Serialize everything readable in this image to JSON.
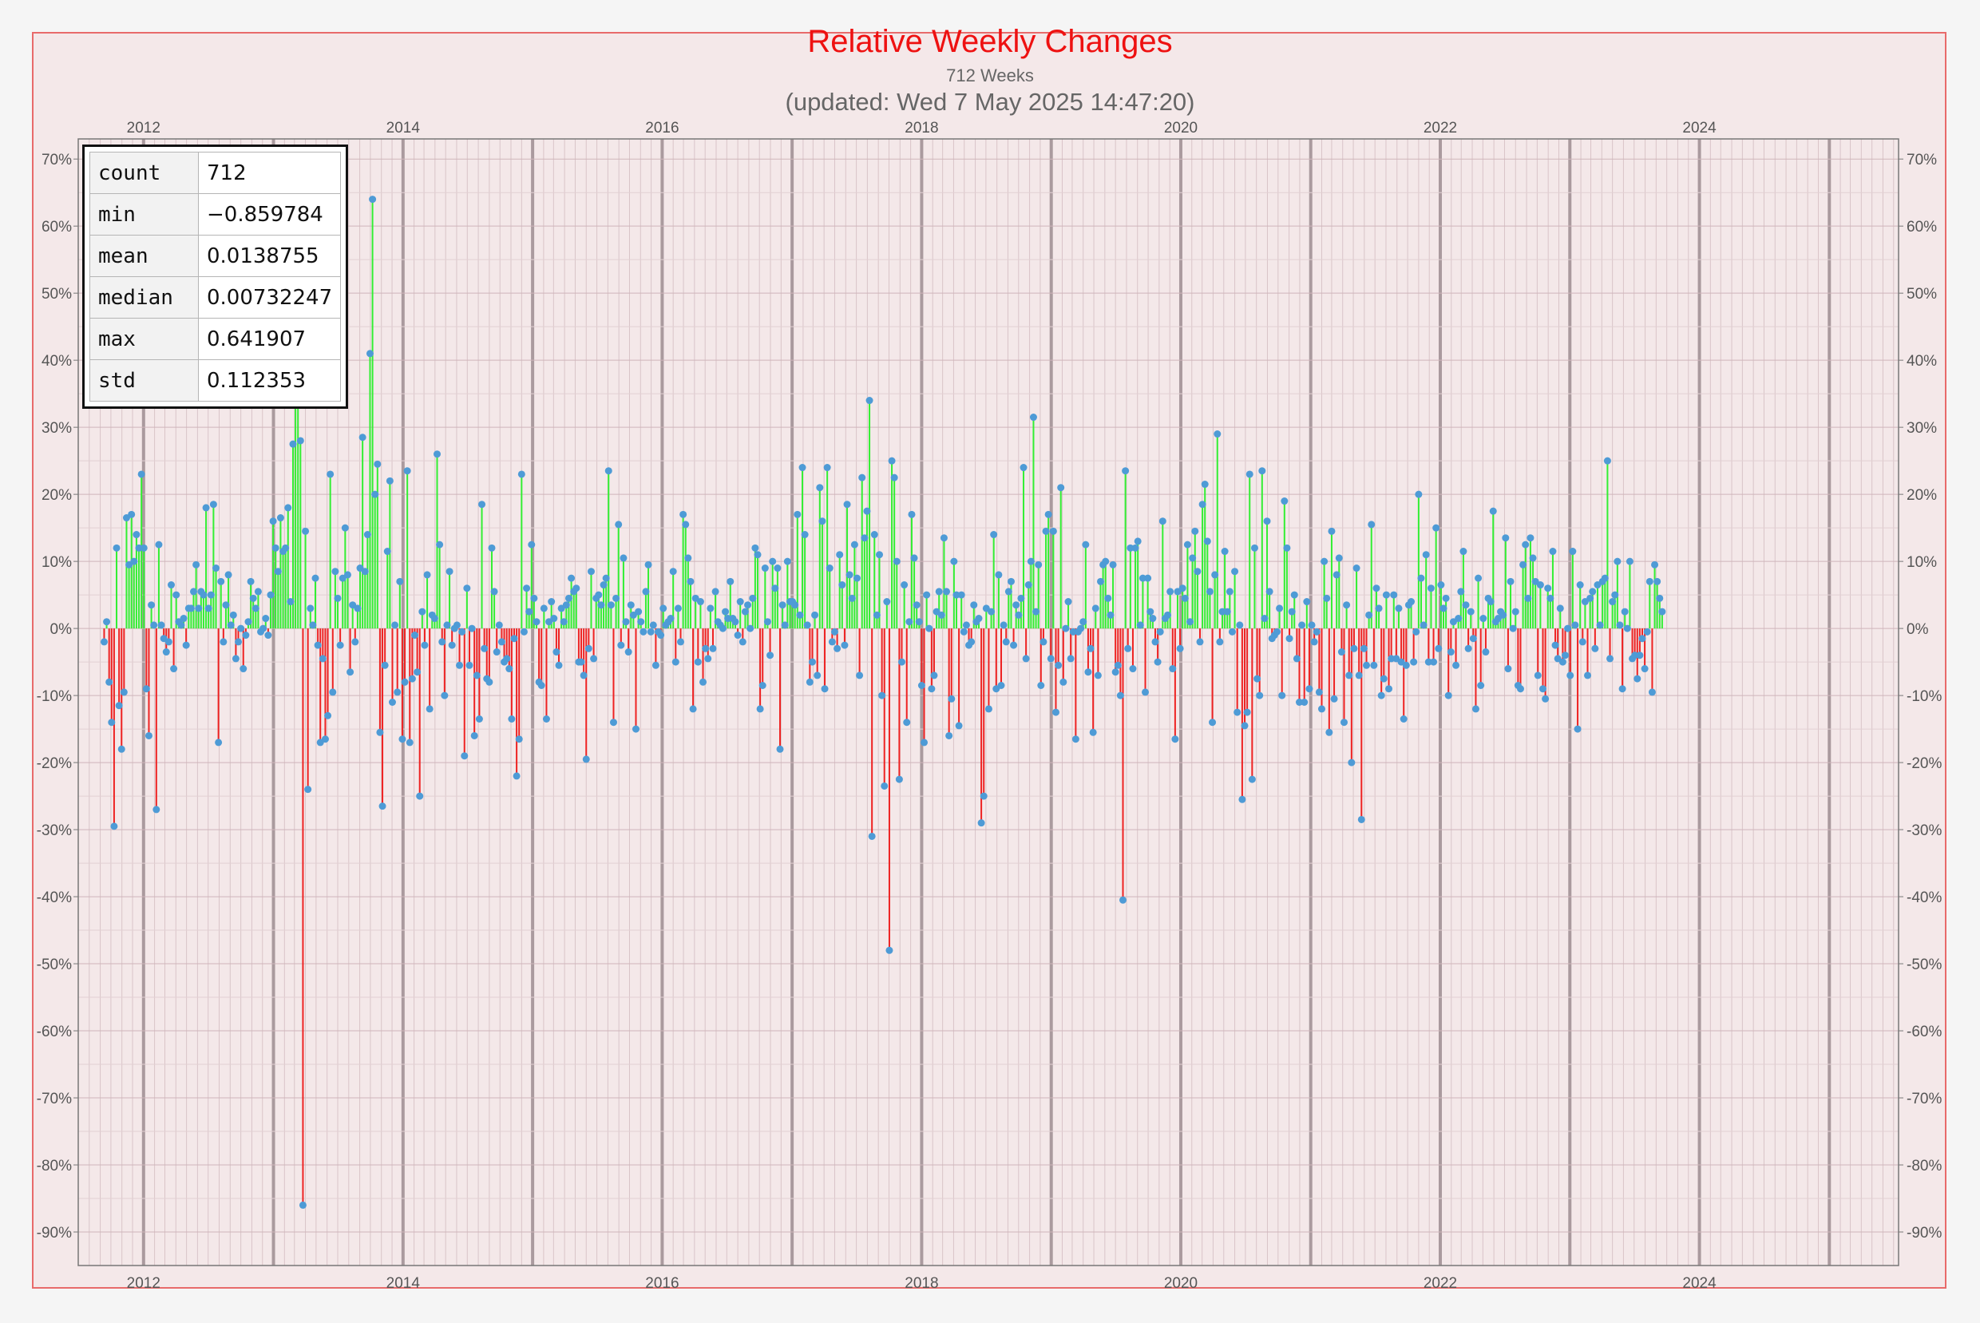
{
  "chart_data": {
    "type": "bar",
    "title": "Relative Weekly Changes",
    "subtitle": "712 Weeks",
    "updated": "(updated: Wed 7 May 2025 14:47:20)",
    "x_axis": {
      "type": "date",
      "range": [
        "2011-07-01",
        "2025-07-15"
      ],
      "tick_labels": [
        "2012",
        "2014",
        "2016",
        "2018",
        "2020",
        "2022",
        "2024"
      ]
    },
    "y_axis": {
      "range": [
        -0.95,
        0.73
      ],
      "format": "percent",
      "ticks": [
        0.7,
        0.6,
        0.5,
        0.4,
        0.3,
        0.2,
        0.1,
        0.0,
        -0.1,
        -0.2,
        -0.3,
        -0.4,
        -0.5,
        -0.6,
        -0.7,
        -0.8,
        -0.9
      ],
      "tick_labels": [
        "70%",
        "60%",
        "50%",
        "40%",
        "30%",
        "20%",
        "10%",
        "0%",
        "-10%",
        "-20%",
        "-30%",
        "-40%",
        "-50%",
        "-60%",
        "-70%",
        "-80%",
        "-90%"
      ]
    },
    "grid": true,
    "colors": {
      "positive": "#33ee33",
      "negative": "#ee2222",
      "marker": "#4e9bd6"
    },
    "stats": [
      {
        "label": "count",
        "value": "712"
      },
      {
        "label": "min",
        "value": "−0.859784"
      },
      {
        "label": "mean",
        "value": "0.0138755"
      },
      {
        "label": "median",
        "value": "0.00732247"
      },
      {
        "label": "max",
        "value": "0.641907"
      },
      {
        "label": "std",
        "value": "0.112353"
      }
    ],
    "series": [
      {
        "start_date": "2011-09-12",
        "period": "week",
        "values": [
          -0.02,
          0.01,
          -0.08,
          -0.14,
          -0.295,
          0.12,
          -0.115,
          -0.18,
          -0.095,
          0.165,
          0.095,
          0.17,
          0.1,
          0.14,
          0.12,
          0.23,
          0.12,
          -0.09,
          -0.16,
          0.035,
          0.005,
          -0.27,
          0.125,
          0.005,
          -0.015,
          -0.035,
          -0.02,
          0.065,
          -0.06,
          0.05,
          0.01,
          0.005,
          0.015,
          -0.025,
          0.03,
          0.03,
          0.055,
          0.095,
          0.03,
          0.055,
          0.05,
          0.18,
          0.03,
          0.05,
          0.185,
          0.09,
          -0.17,
          0.07,
          -0.02,
          0.035,
          0.08,
          0.005,
          0.02,
          -0.045,
          -0.02,
          0.0,
          -0.06,
          -0.01,
          0.01,
          0.07,
          0.045,
          0.03,
          0.055,
          -0.005,
          0.0,
          0.015,
          -0.01,
          0.05,
          0.16,
          0.12,
          0.085,
          0.165,
          0.115,
          0.12,
          0.18,
          0.04,
          0.275,
          0.38,
          0.4,
          0.28,
          -0.86,
          0.145,
          -0.24,
          0.03,
          0.005,
          0.075,
          -0.025,
          -0.17,
          -0.045,
          -0.165,
          -0.13,
          0.23,
          -0.095,
          0.085,
          0.045,
          -0.025,
          0.075,
          0.15,
          0.08,
          -0.065,
          0.035,
          -0.02,
          0.03,
          0.09,
          0.285,
          0.085,
          0.14,
          0.41,
          0.64,
          0.2,
          0.245,
          -0.155,
          -0.265,
          -0.055,
          0.115,
          0.22,
          -0.11,
          0.005,
          -0.095,
          0.07,
          -0.165,
          -0.08,
          0.235,
          -0.17,
          -0.075,
          -0.01,
          -0.065,
          -0.25,
          0.025,
          -0.025,
          0.08,
          -0.12,
          0.02,
          0.015,
          0.26,
          0.125,
          -0.02,
          -0.1,
          0.005,
          0.085,
          -0.025,
          0.0,
          0.005,
          -0.055,
          -0.005,
          -0.19,
          0.06,
          -0.055,
          0.0,
          -0.16,
          -0.07,
          -0.135,
          0.185,
          -0.03,
          -0.075,
          -0.08,
          0.12,
          0.055,
          -0.035,
          0.005,
          -0.02,
          -0.05,
          -0.045,
          -0.06,
          -0.135,
          -0.015,
          -0.22,
          -0.165,
          0.23,
          -0.005,
          0.06,
          0.025,
          0.125,
          0.045,
          0.01,
          -0.08,
          -0.085,
          0.03,
          -0.135,
          0.01,
          0.04,
          0.015,
          -0.035,
          -0.055,
          0.03,
          0.01,
          0.035,
          0.045,
          0.075,
          0.055,
          0.06,
          -0.05,
          -0.05,
          -0.07,
          -0.195,
          -0.03,
          0.085,
          -0.045,
          0.045,
          0.05,
          0.035,
          0.065,
          0.075,
          0.235,
          0.035,
          -0.14,
          0.045,
          0.155,
          -0.025,
          0.105,
          0.01,
          -0.035,
          0.035,
          0.02,
          -0.15,
          0.025,
          0.01,
          -0.005,
          0.055,
          0.095,
          -0.005,
          0.005,
          -0.055,
          -0.005,
          -0.01,
          0.03,
          0.005,
          0.01,
          0.015,
          0.085,
          -0.05,
          0.03,
          -0.02,
          0.17,
          0.155,
          0.105,
          0.07,
          -0.12,
          0.045,
          -0.05,
          0.04,
          -0.08,
          -0.03,
          -0.045,
          0.03,
          -0.03,
          0.055,
          0.01,
          0.005,
          0.0,
          0.025,
          0.015,
          0.07,
          0.015,
          0.01,
          -0.01,
          0.04,
          -0.02,
          0.025,
          0.035,
          0.0,
          0.045,
          0.12,
          0.11,
          -0.12,
          -0.085,
          0.09,
          0.01,
          -0.04,
          0.1,
          0.06,
          0.09,
          -0.18,
          0.035,
          0.005,
          0.1,
          0.04,
          0.04,
          0.035,
          0.17,
          0.02,
          0.24,
          0.14,
          0.005,
          -0.08,
          -0.05,
          0.02,
          -0.07,
          0.21,
          0.16,
          -0.09,
          0.24,
          0.09,
          -0.02,
          -0.005,
          -0.03,
          0.11,
          0.065,
          -0.025,
          0.185,
          0.08,
          0.045,
          0.125,
          0.075,
          -0.07,
          0.225,
          0.135,
          0.175,
          0.34,
          -0.31,
          0.14,
          0.02,
          0.11,
          -0.1,
          -0.235,
          0.04,
          -0.48,
          0.25,
          0.225,
          0.1,
          -0.225,
          -0.05,
          0.065,
          -0.14,
          0.01,
          0.17,
          0.105,
          0.035,
          0.01,
          -0.085,
          -0.17,
          0.05,
          0.0,
          -0.09,
          -0.07,
          0.025,
          0.055,
          0.02,
          0.135,
          0.055,
          -0.16,
          -0.105,
          0.1,
          0.05,
          -0.145,
          0.05,
          -0.005,
          0.005,
          -0.025,
          -0.02,
          0.035,
          0.01,
          0.015,
          -0.29,
          -0.25,
          0.03,
          -0.12,
          0.025,
          0.14,
          -0.09,
          0.08,
          -0.085,
          0.005,
          -0.02,
          0.055,
          0.07,
          -0.025,
          0.035,
          0.02,
          0.045,
          0.24,
          -0.045,
          0.065,
          0.1,
          0.315,
          0.025,
          0.095,
          -0.085,
          -0.02,
          0.145,
          0.17,
          -0.045,
          0.145,
          -0.125,
          -0.055,
          0.21,
          -0.08,
          0.0,
          0.04,
          -0.045,
          -0.005,
          -0.165,
          -0.005,
          0.0,
          0.01,
          0.125,
          -0.065,
          -0.03,
          -0.155,
          0.03,
          -0.07,
          0.07,
          0.095,
          0.1,
          0.045,
          0.02,
          0.095,
          -0.065,
          -0.055,
          -0.1,
          -0.405,
          0.235,
          -0.03,
          0.12,
          -0.06,
          0.12,
          0.13,
          0.005,
          0.075,
          -0.095,
          0.075,
          0.025,
          0.015,
          -0.02,
          -0.05,
          -0.005,
          0.16,
          0.015,
          0.02,
          0.055,
          -0.06,
          -0.165,
          0.055,
          -0.03,
          0.06,
          0.045,
          0.125,
          0.01,
          0.105,
          0.145,
          0.085,
          -0.02,
          0.185,
          0.215,
          0.13,
          0.055,
          -0.14,
          0.08,
          0.29,
          -0.02,
          0.025,
          0.115,
          0.025,
          0.055,
          -0.005,
          0.085,
          -0.125,
          0.005,
          -0.255,
          -0.145,
          -0.125,
          0.23,
          -0.225,
          0.12,
          -0.075,
          -0.1,
          0.235,
          0.015,
          0.16,
          0.055,
          -0.015,
          -0.01,
          -0.005,
          0.03,
          -0.1,
          0.19,
          0.12,
          -0.015,
          0.025,
          0.05,
          -0.045,
          -0.11,
          0.005,
          -0.11,
          0.04,
          -0.09,
          0.005,
          -0.02,
          -0.005,
          -0.095,
          -0.12,
          0.1,
          0.045,
          -0.155,
          0.145,
          -0.105,
          0.08,
          0.105,
          -0.035,
          -0.14,
          0.035,
          -0.07,
          -0.2,
          -0.03,
          0.09,
          -0.07,
          -0.285,
          -0.03,
          -0.055,
          0.02,
          0.155,
          -0.055,
          0.06,
          0.03,
          -0.1,
          -0.075,
          0.05,
          -0.09,
          -0.045,
          0.05,
          -0.045,
          0.03,
          -0.05,
          -0.135,
          -0.055,
          0.035,
          0.04,
          -0.05,
          -0.005,
          0.2,
          0.075,
          0.005,
          0.11,
          -0.05,
          0.06,
          -0.05,
          0.15,
          -0.03,
          0.065,
          0.03,
          0.045,
          -0.1,
          -0.035,
          0.01,
          -0.055,
          0.015,
          0.055,
          0.115,
          0.035,
          -0.03,
          0.025,
          -0.015,
          -0.12,
          0.075,
          -0.085,
          0.015,
          -0.035,
          0.045,
          0.04,
          0.175,
          0.01,
          0.015,
          0.025,
          0.02,
          0.135,
          -0.06,
          0.07,
          0.0,
          0.025,
          -0.085,
          -0.09,
          0.095,
          0.125,
          0.045,
          0.135,
          0.105,
          0.07,
          -0.07,
          0.065,
          -0.09,
          -0.105,
          0.06,
          0.045,
          0.115,
          -0.025,
          -0.045,
          0.03,
          -0.05,
          -0.04,
          0.0,
          -0.07,
          0.115,
          0.005,
          -0.15,
          0.065,
          -0.02,
          0.04,
          -0.07,
          0.045,
          0.055,
          -0.03,
          0.065,
          0.005,
          0.07,
          0.075,
          0.25,
          -0.045,
          0.04,
          0.05,
          0.1,
          0.005,
          -0.09,
          0.025,
          0.0,
          0.1,
          -0.045,
          -0.04,
          -0.075,
          -0.04,
          -0.015,
          -0.06,
          -0.005,
          0.07,
          -0.095,
          0.095,
          0.07,
          0.045,
          0.025
        ]
      }
    ]
  }
}
